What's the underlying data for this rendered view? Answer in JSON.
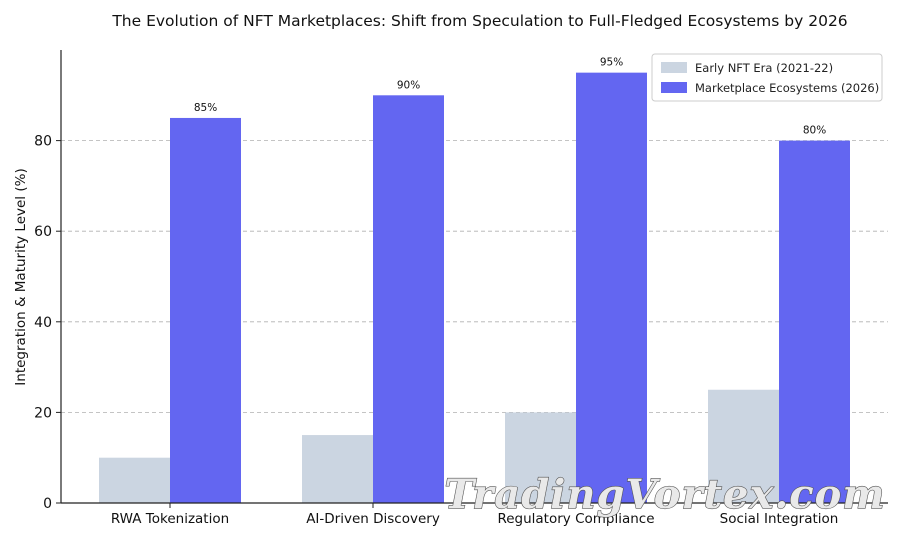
{
  "chart_data": {
    "type": "bar",
    "title": "The Evolution of NFT Marketplaces: Shift from Speculation to Full-Fledged Ecosystems by 2026",
    "xlabel": "",
    "ylabel": "Integration & Maturity Level (%)",
    "categories": [
      "RWA Tokenization",
      "AI-Driven Discovery",
      "Regulatory Compliance",
      "Social Integration"
    ],
    "series": [
      {
        "name": "Early NFT Era (2021-22)",
        "values": [
          10,
          15,
          20,
          25
        ],
        "color": "#cbd5e1",
        "data_labels": false
      },
      {
        "name": "Marketplace Ecosystems (2026)",
        "values": [
          85,
          90,
          95,
          80
        ],
        "color": "#6366f1",
        "data_labels": true
      }
    ],
    "data_label_suffix": "%",
    "ylim": [
      0,
      100
    ],
    "yticks": [
      0,
      20,
      40,
      60,
      80
    ],
    "grid": "y-dashed",
    "legend_position": "top-right"
  },
  "watermark": "TradingVortex.com"
}
